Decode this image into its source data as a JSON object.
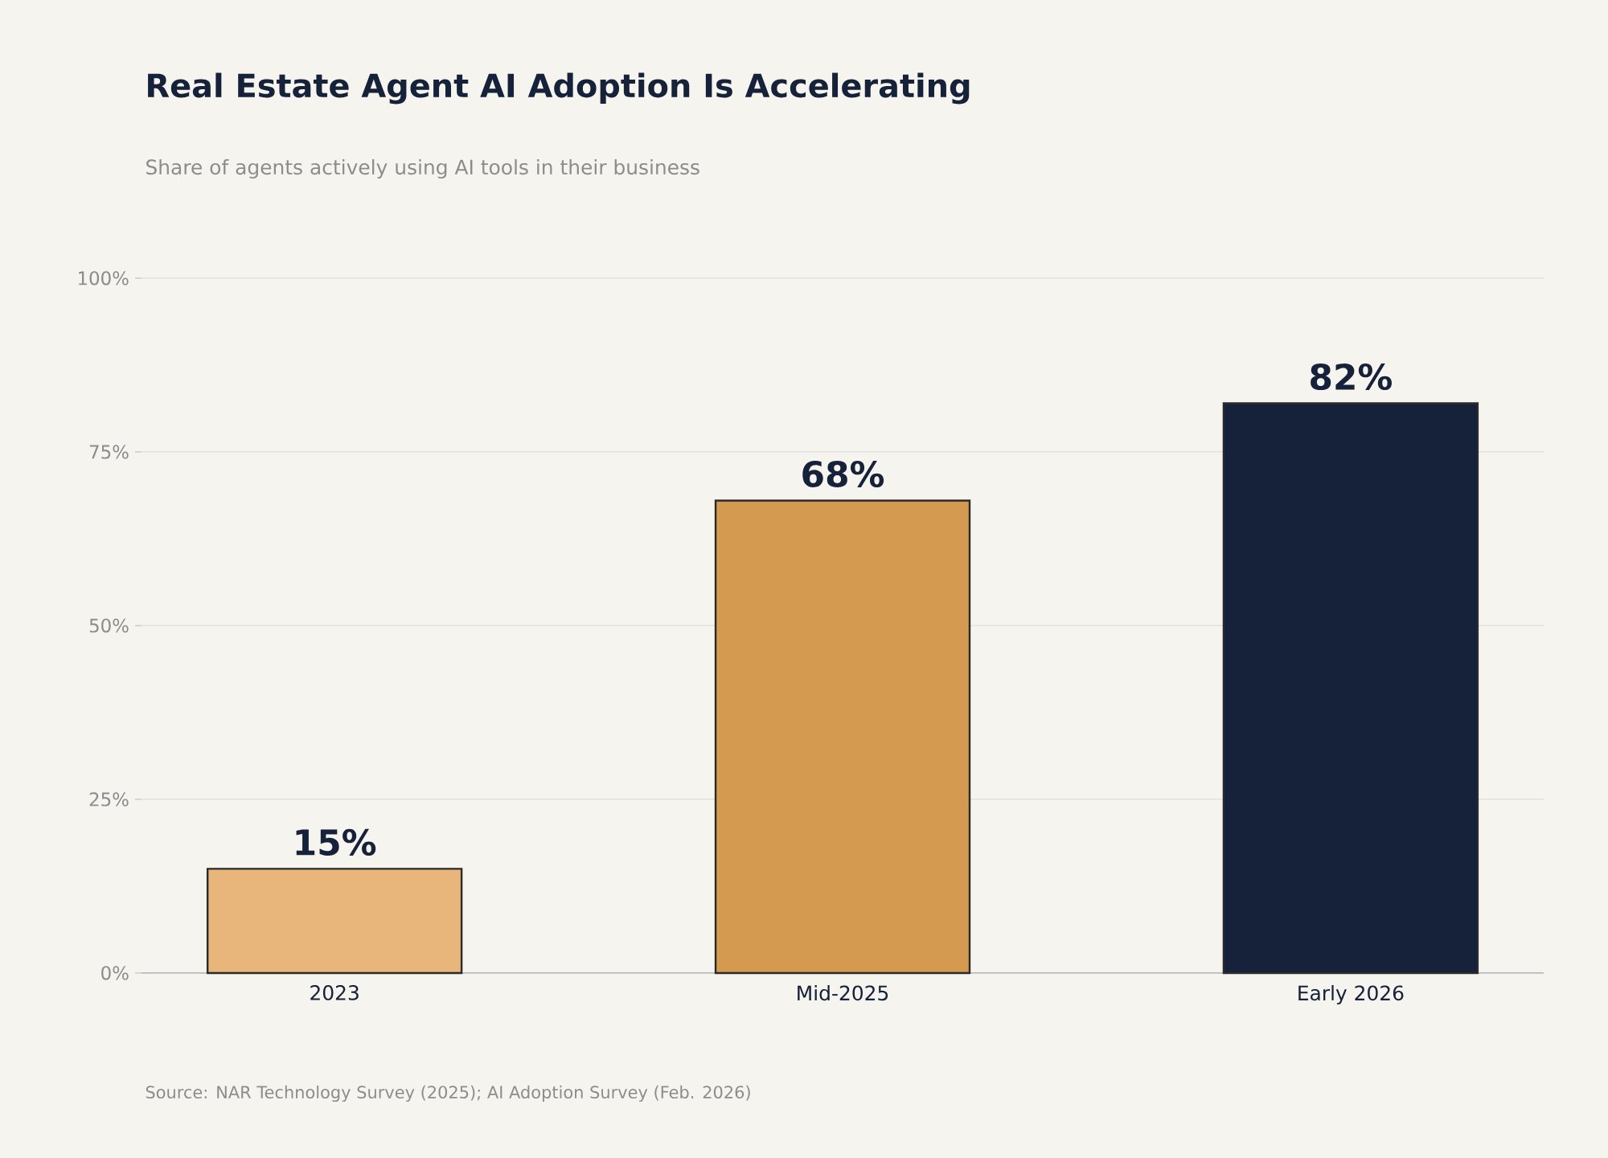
{
  "chart_data": {
    "type": "bar",
    "title": "Real Estate Agent AI Adoption Is Accelerating",
    "subtitle": "Share of agents actively using AI tools in their business",
    "categories": [
      "2023",
      "Mid-2025",
      "Early 2026"
    ],
    "values": [
      15,
      68,
      82
    ],
    "colors": [
      "#e8b67a",
      "#d49a50",
      "#16213a"
    ],
    "value_labels": [
      "15%",
      "68%",
      "82%"
    ],
    "ylim": [
      0,
      100
    ],
    "yticks": [
      {
        "value": 0,
        "label": "0%"
      },
      {
        "value": 25,
        "label": "25%"
      },
      {
        "value": 50,
        "label": "50%"
      },
      {
        "value": 75,
        "label": "75%"
      },
      {
        "value": 100,
        "label": "100%"
      }
    ],
    "grid": "y",
    "annotations": [
      "Source: NAR Technology Survey (2025); AI Adoption Survey (Feb. 2026)"
    ]
  }
}
